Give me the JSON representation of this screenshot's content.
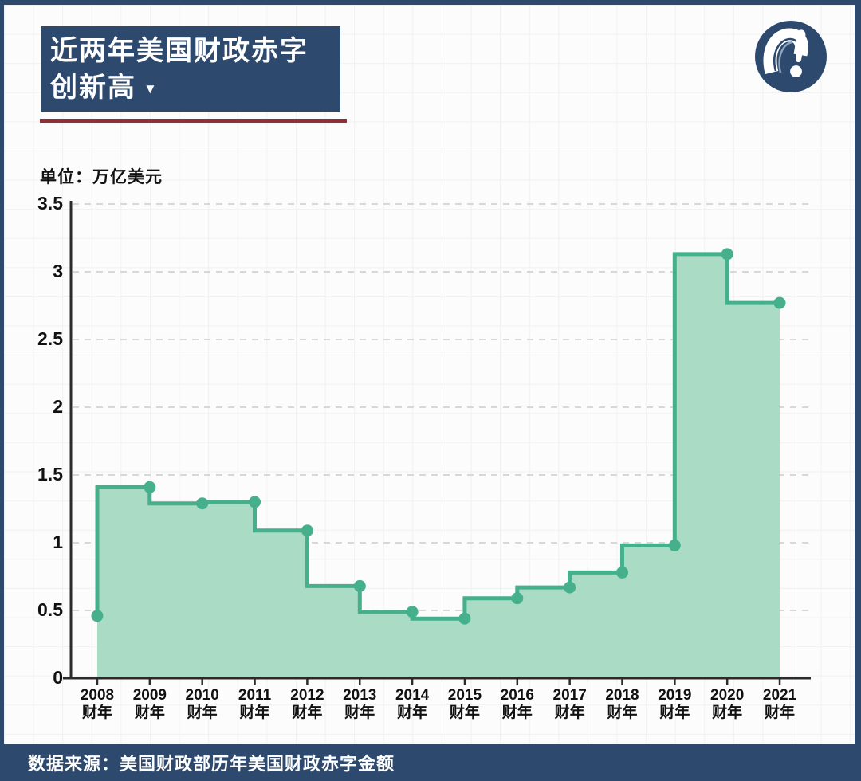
{
  "colors": {
    "navy": "#2d4a6e",
    "red_accent": "#8e3038",
    "line_green": "#45b08b",
    "fill_green": "#aadcc5",
    "axis_color": "#2b2b2b",
    "dashed_grid": "#d8d8d8",
    "text_dark": "#111111"
  },
  "header": {
    "title_line1": "近两年美国财政赤字",
    "title_line2": "创新高",
    "arrow_icon": "▼"
  },
  "chart_data": {
    "type": "area",
    "step_style": "step-before",
    "title": "近两年美国财政赤字创新高",
    "unit_label": "单位：万亿美元",
    "ylabel": "万亿美元",
    "x_categories": [
      "2008",
      "2009",
      "2010",
      "2011",
      "2012",
      "2013",
      "2014",
      "2015",
      "2016",
      "2017",
      "2018",
      "2019",
      "2020",
      "2021"
    ],
    "x_tick_suffix": "财年",
    "values": [
      0.46,
      1.41,
      1.29,
      1.3,
      1.09,
      0.68,
      0.49,
      0.44,
      0.59,
      0.67,
      0.78,
      0.98,
      3.13,
      2.77
    ],
    "ylim": [
      0,
      3.5
    ],
    "ytick_values": [
      0,
      0.5,
      1,
      1.5,
      2,
      2.5,
      3,
      3.5
    ],
    "ytick_labels": [
      "0",
      "0.5",
      "1",
      "1.5",
      "2",
      "2.5",
      "3",
      "3.5"
    ],
    "grid": "dashed-horizontal",
    "legend": "none",
    "marker": "circle"
  },
  "footer": {
    "source_text": "数据来源：美国财政部历年美国财政赤字金额"
  }
}
